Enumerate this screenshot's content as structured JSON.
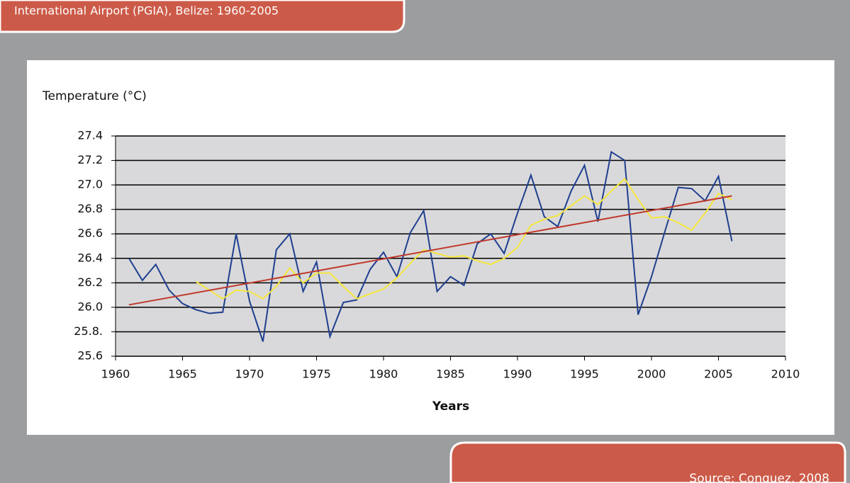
{
  "chart_data": {
    "type": "line",
    "title": "International Airport (PGIA), Belize: 1960-2005",
    "ylabel": "Temperature (°C)",
    "xlabel": "Years",
    "source": "Source: Conquez, 2008",
    "xlim": [
      1960,
      2010
    ],
    "xticks": [
      1960,
      1965,
      1970,
      1975,
      1980,
      1985,
      1990,
      1995,
      2000,
      2005,
      2010
    ],
    "ylim": [
      25.6,
      27.4
    ],
    "yticks": [
      25.6,
      {
        "value": 25.8,
        "label": "25.8."
      },
      {
        "value": 26.0,
        "label": "26.0"
      },
      26.2,
      26.4,
      26.6,
      26.8,
      {
        "value": 27.0,
        "label": "27.0"
      },
      27.2,
      27.4
    ],
    "grid": true,
    "series": [
      {
        "color": "#1f3f8f",
        "x": [
          1961,
          1962,
          1963,
          1964,
          1965,
          1966,
          1967,
          1968,
          1969,
          1970,
          1971,
          1972,
          1973,
          1974,
          1975,
          1976,
          1977,
          1978,
          1979,
          1980,
          1981,
          1982,
          1983,
          1984,
          1985,
          1986,
          1987,
          1988,
          1989,
          1990,
          1991,
          1992,
          1993,
          1994,
          1995,
          1996,
          1997,
          1998,
          1999,
          2000,
          2001,
          2002,
          2003,
          2004,
          2005,
          2006
        ],
        "values": [
          26.4,
          26.22,
          26.35,
          26.14,
          26.03,
          25.98,
          25.95,
          25.96,
          26.6,
          26.05,
          25.72,
          26.47,
          26.6,
          26.13,
          26.37,
          25.76,
          26.04,
          26.06,
          26.31,
          26.45,
          26.25,
          26.61,
          26.79,
          26.13,
          26.25,
          26.18,
          26.52,
          26.6,
          26.44,
          26.77,
          27.08,
          26.74,
          26.66,
          26.95,
          27.16,
          26.7,
          27.27,
          27.2,
          25.94,
          26.25,
          26.62,
          26.98,
          26.97,
          26.87,
          27.07,
          26.54
        ]
      },
      {
        "color": "#f5e63c",
        "x": [
          1966,
          1967,
          1968,
          1969,
          1970,
          1971,
          1972,
          1973,
          1974,
          1975,
          1976,
          1977,
          1978,
          1979,
          1980,
          1981,
          1982,
          1983,
          1984,
          1985,
          1986,
          1987,
          1988,
          1989,
          1990,
          1991,
          1992,
          1993,
          1994,
          1995,
          1996,
          1997,
          1998,
          1999,
          2000,
          2001,
          2002,
          2003,
          2004,
          2005,
          2006
        ],
        "values": [
          26.21,
          26.14,
          26.07,
          26.14,
          26.13,
          26.07,
          26.17,
          26.32,
          26.2,
          26.28,
          26.28,
          26.17,
          26.07,
          26.11,
          26.15,
          26.24,
          26.36,
          26.47,
          26.44,
          26.41,
          26.42,
          26.38,
          26.35,
          26.4,
          26.49,
          26.67,
          26.72,
          26.75,
          26.83,
          26.91,
          26.84,
          26.95,
          27.05,
          26.88,
          26.73,
          26.74,
          26.69,
          26.63,
          26.77,
          26.93,
          26.88
        ]
      },
      {
        "color": "#c0392b",
        "x": [
          1961,
          2006
        ],
        "values": [
          26.02,
          26.91
        ]
      }
    ]
  }
}
